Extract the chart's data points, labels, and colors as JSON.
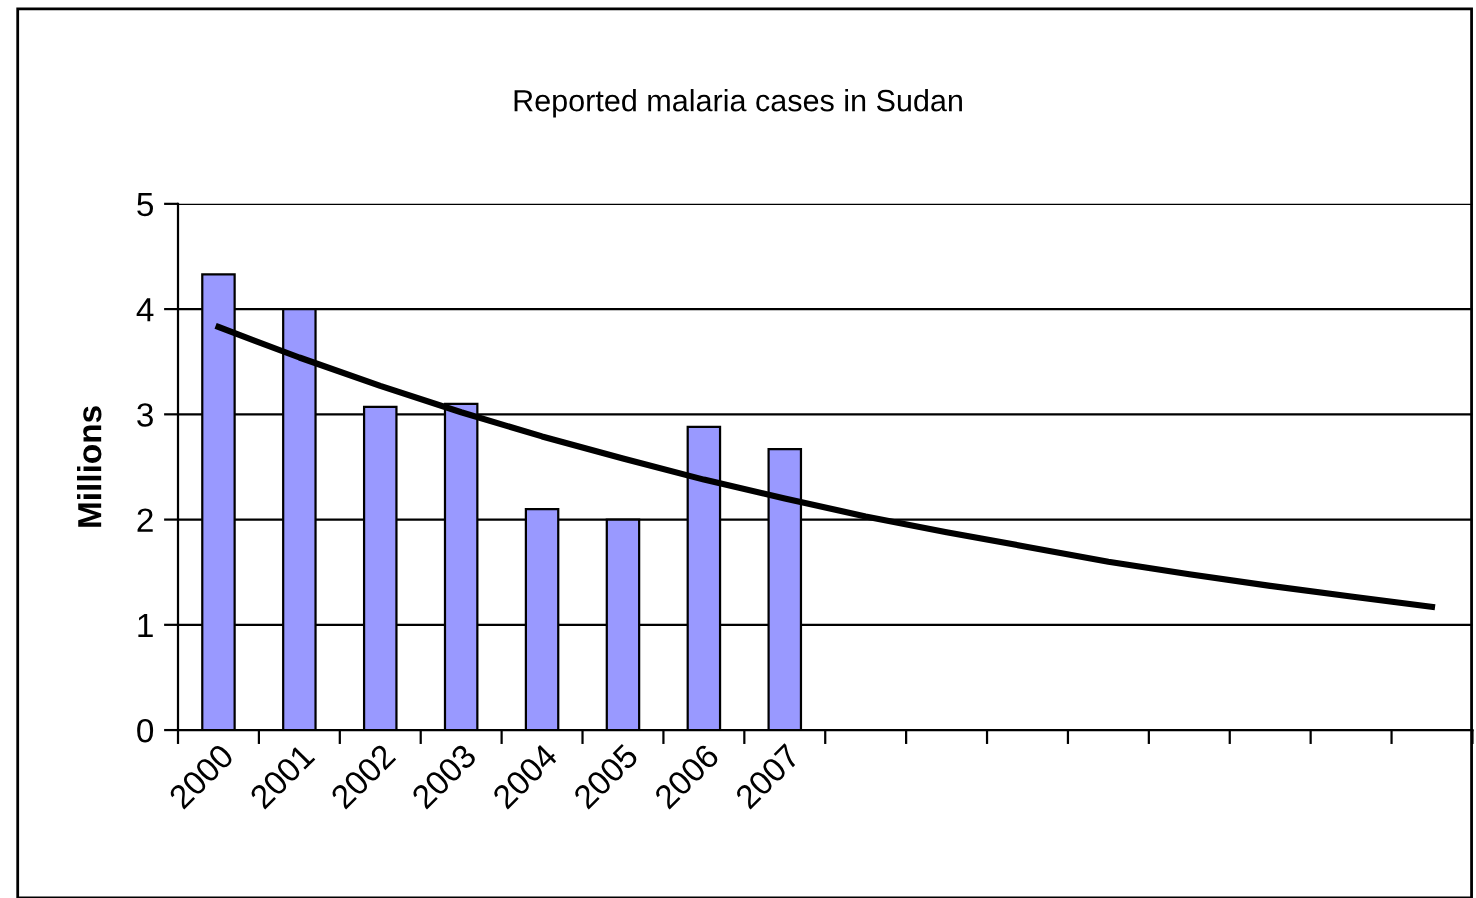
{
  "chart_data": {
    "type": "bar",
    "title": "Reported malaria cases in Sudan",
    "ylabel": "Millions",
    "categories": [
      "2000",
      "2001",
      "2002",
      "2003",
      "2004",
      "2005",
      "2006",
      "2007",
      null,
      null,
      null,
      null,
      null,
      null,
      null,
      null
    ],
    "series": [
      {
        "color": "#9999ff",
        "values": [
          4.33,
          4.0,
          3.07,
          3.1,
          2.1,
          2.0,
          2.88,
          2.67,
          null,
          null,
          null,
          null,
          null,
          null,
          null,
          null
        ]
      },
      {
        "type": "line",
        "color": "#000000",
        "values": [
          3.83,
          3.54,
          3.27,
          3.02,
          2.79,
          2.58,
          2.38,
          2.2,
          2.03,
          1.88,
          1.74,
          1.6,
          1.48,
          1.37,
          1.27,
          1.17
        ]
      }
    ],
    "ylim": [
      0,
      5
    ],
    "yticks": [
      0,
      1,
      2,
      3,
      4,
      5
    ],
    "grid": "y",
    "legend": false,
    "marker": "none",
    "line_style": "solid"
  }
}
